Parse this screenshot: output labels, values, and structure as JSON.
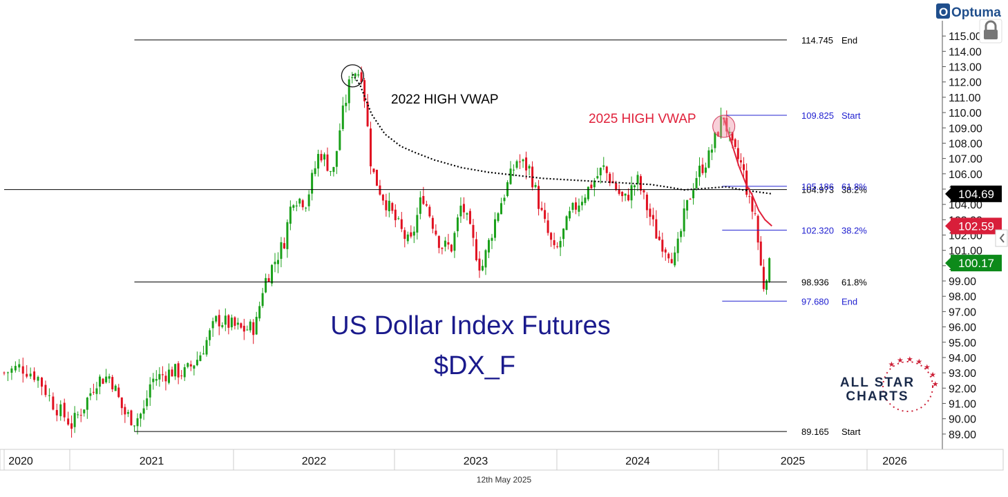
{
  "brand": {
    "name": "Optuma",
    "color": "#1f4e8c"
  },
  "footer_date": "12th May 2025",
  "watermark": {
    "line1": "ALL STAR",
    "line2": "CHARTS",
    "color": "#1a2a4a",
    "star_color": "#cc1f36"
  },
  "chart_data": {
    "type": "candlestick",
    "title": "US Dollar Index Futures",
    "subtitle": "$DX_F",
    "title_color": "#1a1a8c",
    "ylim": [
      88.0,
      116.0
    ],
    "y_ticks": [
      "89.00",
      "90.00",
      "91.00",
      "92.00",
      "93.00",
      "94.00",
      "95.00",
      "96.00",
      "97.00",
      "98.00",
      "99.00",
      "100.00",
      "101.00",
      "102.00",
      "103.00",
      "104.00",
      "105.00",
      "106.00",
      "107.00",
      "108.00",
      "109.00",
      "110.00",
      "111.00",
      "112.00",
      "113.00",
      "114.00",
      "115.00"
    ],
    "x_ticks": [
      "2020",
      "2021",
      "2022",
      "2023",
      "2024",
      "2025",
      "2026"
    ],
    "x_domain": [
      "2020-09-01",
      "2026-09-01"
    ],
    "x_tick_dates": [
      "2020-09-01",
      "2021-01-01",
      "2022-01-01",
      "2023-01-01",
      "2024-01-01",
      "2025-01-01",
      "2026-01-01"
    ],
    "colors": {
      "up": "#1aa01a",
      "down": "#e01020",
      "fib_black": "#000000",
      "fib_blue": "#2020d0",
      "vwap_2025": "#e0203a",
      "vwap_2022": "#000000"
    },
    "fib_levels": [
      {
        "value": 114.745,
        "label": "114.745",
        "tag": "End",
        "color": "black",
        "from": "2021-05-25",
        "to": "2025-06-18"
      },
      {
        "value": 104.973,
        "label": "104.973",
        "tag": "38.2%",
        "color": "black",
        "from": "2020-09-01",
        "to": "2025-06-18"
      },
      {
        "value": 98.936,
        "label": "98.936",
        "tag": "61.8%",
        "color": "black",
        "from": "2021-05-25",
        "to": "2025-06-18"
      },
      {
        "value": 89.165,
        "label": "89.165",
        "tag": "Start",
        "color": "black",
        "from": "2021-05-25",
        "to": "2025-06-18"
      },
      {
        "value": 109.825,
        "label": "109.825",
        "tag": "Start",
        "color": "blue",
        "from": "2025-01-10",
        "to": "2025-06-18"
      },
      {
        "value": 105.186,
        "label": "105.186",
        "tag": "61.8%",
        "color": "blue",
        "from": "2025-01-10",
        "to": "2025-06-18"
      },
      {
        "value": 102.32,
        "label": "102.320",
        "tag": "38.2%",
        "color": "blue",
        "from": "2025-01-10",
        "to": "2025-06-18"
      },
      {
        "value": 97.68,
        "label": "97.680",
        "tag": "End",
        "color": "blue",
        "from": "2025-01-10",
        "to": "2025-06-18"
      }
    ],
    "price_badges": [
      {
        "label": "104.69",
        "value": 104.69,
        "color": "#000000"
      },
      {
        "label": "102.59",
        "value": 102.59,
        "color": "#d81e3a"
      },
      {
        "label": "100.17",
        "value": 100.17,
        "color": "#0d8a1a"
      }
    ],
    "annotations": [
      {
        "text": "2022 HIGH VWAP",
        "color": "#000000"
      },
      {
        "text": "2025 HIGH VWAP",
        "color": "#e0203a"
      }
    ],
    "highlight_circles": [
      {
        "date": "2022-09-28",
        "value": 112.4,
        "style": "outline"
      },
      {
        "date": "2025-01-14",
        "value": 109.1,
        "style": "pink"
      }
    ],
    "vwap_2022": [
      [
        "2022-09-28",
        112.5
      ],
      [
        "2022-10-15",
        111.8
      ],
      [
        "2022-11-10",
        109.9
      ],
      [
        "2022-12-10",
        108.6
      ],
      [
        "2023-01-15",
        107.8
      ],
      [
        "2023-02-15",
        107.4
      ],
      [
        "2023-04-01",
        106.9
      ],
      [
        "2023-06-01",
        106.4
      ],
      [
        "2023-08-01",
        106.1
      ],
      [
        "2023-10-01",
        105.9
      ],
      [
        "2023-12-01",
        105.7
      ],
      [
        "2024-02-01",
        105.6
      ],
      [
        "2024-04-01",
        105.5
      ],
      [
        "2024-06-01",
        105.4
      ],
      [
        "2024-08-01",
        105.3
      ],
      [
        "2024-09-15",
        105.1
      ],
      [
        "2024-10-15",
        104.95
      ],
      [
        "2024-12-01",
        105.05
      ],
      [
        "2025-01-20",
        105.15
      ],
      [
        "2025-03-01",
        104.95
      ],
      [
        "2025-05-12",
        104.69
      ]
    ],
    "vwap_2025": [
      [
        "2025-01-14",
        109.6
      ],
      [
        "2025-02-01",
        108.1
      ],
      [
        "2025-02-20",
        106.5
      ],
      [
        "2025-03-10",
        105.3
      ],
      [
        "2025-03-25",
        104.6
      ],
      [
        "2025-04-10",
        103.6
      ],
      [
        "2025-04-25",
        103.0
      ],
      [
        "2025-05-12",
        102.59
      ]
    ],
    "weekly_close_path": [
      [
        "2020-09-01",
        93.0
      ],
      [
        "2020-10-01",
        93.4
      ],
      [
        "2020-11-01",
        92.8
      ],
      [
        "2020-12-01",
        91.0
      ],
      [
        "2021-01-05",
        89.6
      ],
      [
        "2021-02-01",
        90.8
      ],
      [
        "2021-03-01",
        92.5
      ],
      [
        "2021-04-01",
        92.8
      ],
      [
        "2021-05-01",
        90.4
      ],
      [
        "2021-05-25",
        89.9
      ],
      [
        "2021-06-15",
        90.5
      ],
      [
        "2021-07-01",
        92.5
      ],
      [
        "2021-08-15",
        93.1
      ],
      [
        "2021-09-15",
        93.0
      ],
      [
        "2021-10-15",
        94.0
      ],
      [
        "2021-11-25",
        96.5
      ],
      [
        "2021-12-20",
        96.2
      ],
      [
        "2022-01-20",
        95.8
      ],
      [
        "2022-02-20",
        96.0
      ],
      [
        "2022-03-10",
        98.8
      ],
      [
        "2022-04-25",
        101.5
      ],
      [
        "2022-05-15",
        104.5
      ],
      [
        "2022-06-15",
        104.2
      ],
      [
        "2022-07-15",
        107.5
      ],
      [
        "2022-08-15",
        106.0
      ],
      [
        "2022-09-01",
        109.3
      ],
      [
        "2022-09-28",
        112.8
      ],
      [
        "2022-10-20",
        112.5
      ],
      [
        "2022-11-10",
        106.3
      ],
      [
        "2022-12-01",
        104.8
      ],
      [
        "2023-01-15",
        102.3
      ],
      [
        "2023-02-05",
        101.3
      ],
      [
        "2023-03-05",
        104.7
      ],
      [
        "2023-04-15",
        101.3
      ],
      [
        "2023-05-10",
        101.2
      ],
      [
        "2023-06-01",
        104.1
      ],
      [
        "2023-07-15",
        99.7
      ],
      [
        "2023-08-20",
        103.5
      ],
      [
        "2023-10-03",
        106.9
      ],
      [
        "2023-11-01",
        106.3
      ],
      [
        "2023-12-01",
        103.0
      ],
      [
        "2023-12-28",
        100.7
      ],
      [
        "2024-02-01",
        103.4
      ],
      [
        "2024-04-15",
        106.4
      ],
      [
        "2024-06-01",
        104.2
      ],
      [
        "2024-07-01",
        105.6
      ],
      [
        "2024-08-15",
        101.9
      ],
      [
        "2024-09-25",
        100.4
      ],
      [
        "2024-10-15",
        103.2
      ],
      [
        "2024-11-10",
        105.8
      ],
      [
        "2024-12-10",
        107.1
      ],
      [
        "2025-01-13",
        109.9
      ],
      [
        "2025-02-01",
        107.8
      ],
      [
        "2025-03-01",
        106.4
      ],
      [
        "2025-03-20",
        103.8
      ],
      [
        "2025-04-01",
        103.4
      ],
      [
        "2025-04-10",
        101.0
      ],
      [
        "2025-04-21",
        98.6
      ],
      [
        "2025-05-01",
        99.8
      ],
      [
        "2025-05-12",
        100.17
      ]
    ]
  }
}
